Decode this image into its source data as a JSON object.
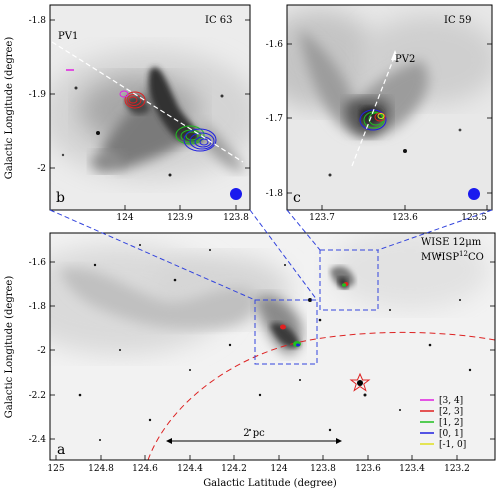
{
  "panel_b": {
    "letter": "b",
    "title": "IC 63",
    "pv_label": "PV1",
    "yticks": [
      "-1.8",
      "-1.9",
      "-2"
    ],
    "xticks": [
      "124",
      "123.9",
      "123.8"
    ],
    "ylabel": "Galactic Longitude (degree)"
  },
  "panel_c": {
    "letter": "c",
    "title": "IC 59",
    "pv_label": "PV2",
    "yticks": [
      "-1.6",
      "-1.7",
      "-1.8"
    ],
    "xticks": [
      "123.7",
      "123.6",
      "123.5"
    ]
  },
  "panel_a": {
    "letter": "a",
    "label_wise": "WISE 12μm",
    "label_mwisp": "MWISP",
    "label_co_sup": "12",
    "label_co": "CO",
    "scale_bar": "2 pc",
    "yticks": [
      "-1.6",
      "-1.8",
      "-2",
      "-2.2",
      "-2.4"
    ],
    "xticks": [
      "125",
      "124.8",
      "124.6",
      "124.4",
      "124.2",
      "124",
      "123.8",
      "123.6",
      "123.4",
      "123.2"
    ],
    "ylabel": "Galactic Longitude (degree)",
    "xlabel": "Galactic Latitude (degree)",
    "legend": [
      {
        "label": "[3, 4]",
        "color": "#e020e0"
      },
      {
        "label": "[2, 3]",
        "color": "#e02020"
      },
      {
        "label": "[1, 2]",
        "color": "#20c020"
      },
      {
        "label": "[0, 1]",
        "color": "#2020e0"
      },
      {
        "label": "[-1, 0]",
        "color": "#e0e020"
      }
    ]
  },
  "colors": {
    "zoom_box": "#3344dd",
    "circle": "#dd2222",
    "pv_arrow": "#ffffff",
    "beam": "#1a1aee"
  }
}
